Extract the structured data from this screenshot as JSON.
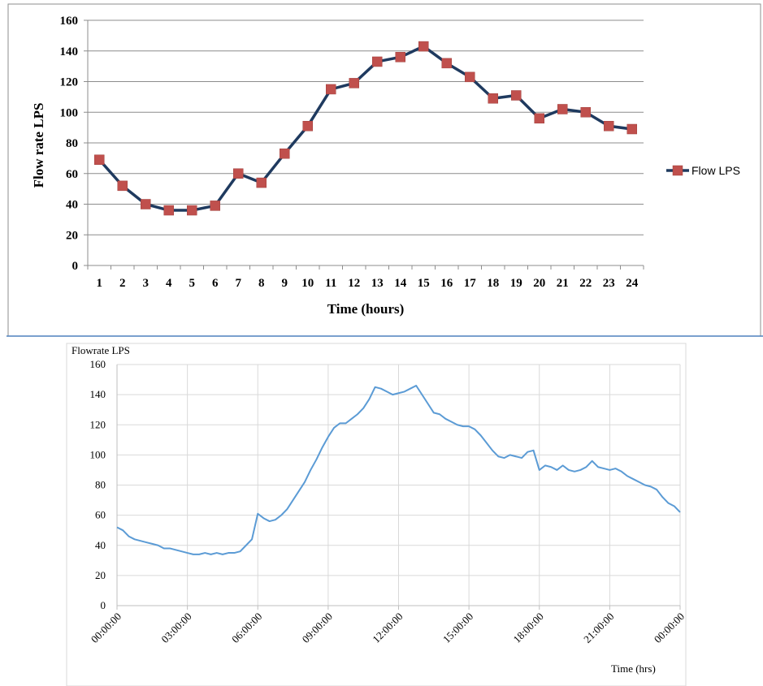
{
  "chart_data": [
    {
      "type": "line",
      "title": "",
      "xlabel": "Time (hours)",
      "ylabel": "Flow rate LPS",
      "categories": [
        "1",
        "2",
        "3",
        "4",
        "5",
        "6",
        "7",
        "8",
        "9",
        "10",
        "11",
        "12",
        "13",
        "14",
        "15",
        "16",
        "17",
        "18",
        "19",
        "20",
        "21",
        "22",
        "23",
        "24"
      ],
      "series": [
        {
          "name": "Flow LPS",
          "values": [
            69,
            52,
            40,
            36,
            36,
            39,
            60,
            54,
            73,
            91,
            115,
            119,
            133,
            136,
            143,
            132,
            123,
            109,
            111,
            96,
            102,
            100,
            91,
            89
          ],
          "line_color": "#1f3a5f",
          "marker_color": "#c0504d"
        }
      ],
      "ylim": [
        0,
        160
      ],
      "yticks": [
        "0",
        "20",
        "40",
        "60",
        "80",
        "100",
        "120",
        "140",
        "160"
      ],
      "grid": true,
      "legend_position": "right"
    },
    {
      "type": "line",
      "title": "",
      "xlabel": "Time (hrs)",
      "ylabel": "Flowrate LPS",
      "xticks": [
        "00:00:00",
        "03:00:00",
        "06:00:00",
        "09:00:00",
        "12:00:00",
        "15:00:00",
        "18:00:00",
        "21:00:00",
        "00:00:00"
      ],
      "yticks": [
        "0",
        "20",
        "40",
        "60",
        "80",
        "100",
        "120",
        "140",
        "160"
      ],
      "ylim": [
        0,
        160
      ],
      "x_unit": "hours",
      "xlim": [
        0,
        24
      ],
      "grid": true,
      "series": [
        {
          "color": "#5b9bd5",
          "x": [
            0,
            0.25,
            0.5,
            0.75,
            1,
            1.25,
            1.5,
            1.75,
            2,
            2.25,
            2.5,
            2.75,
            3,
            3.25,
            3.5,
            3.75,
            4,
            4.25,
            4.5,
            4.75,
            5,
            5.25,
            5.5,
            5.75,
            6,
            6.25,
            6.5,
            6.75,
            7,
            7.25,
            7.5,
            7.75,
            8,
            8.25,
            8.5,
            8.75,
            9,
            9.25,
            9.5,
            9.75,
            10,
            10.25,
            10.5,
            10.75,
            11,
            11.25,
            11.5,
            11.75,
            12,
            12.25,
            12.5,
            12.75,
            13,
            13.25,
            13.5,
            13.75,
            14,
            14.25,
            14.5,
            14.75,
            15,
            15.25,
            15.5,
            15.75,
            16,
            16.25,
            16.5,
            16.75,
            17,
            17.25,
            17.5,
            17.75,
            18,
            18.25,
            18.5,
            18.75,
            19,
            19.25,
            19.5,
            19.75,
            20,
            20.25,
            20.5,
            20.75,
            21,
            21.25,
            21.5,
            21.75,
            22,
            22.25,
            22.5,
            22.75,
            23,
            23.25,
            23.5,
            23.75,
            24
          ],
          "y": [
            52,
            50,
            46,
            44,
            43,
            42,
            41,
            40,
            38,
            38,
            37,
            36,
            35,
            34,
            34,
            35,
            34,
            35,
            34,
            35,
            35,
            36,
            40,
            44,
            61,
            58,
            56,
            57,
            60,
            64,
            70,
            76,
            82,
            90,
            97,
            105,
            112,
            118,
            121,
            121,
            124,
            127,
            131,
            137,
            145,
            144,
            142,
            140,
            141,
            142,
            144,
            146,
            140,
            134,
            128,
            127,
            124,
            122,
            120,
            119,
            119,
            117,
            113,
            108,
            103,
            99,
            98,
            100,
            99,
            98,
            102,
            103,
            90,
            93,
            92,
            90,
            93,
            90,
            89,
            90,
            92,
            96,
            92,
            91,
            90,
            91,
            89,
            86,
            84,
            82,
            80,
            79,
            77,
            72,
            68,
            66,
            62
          ]
        }
      ]
    }
  ]
}
